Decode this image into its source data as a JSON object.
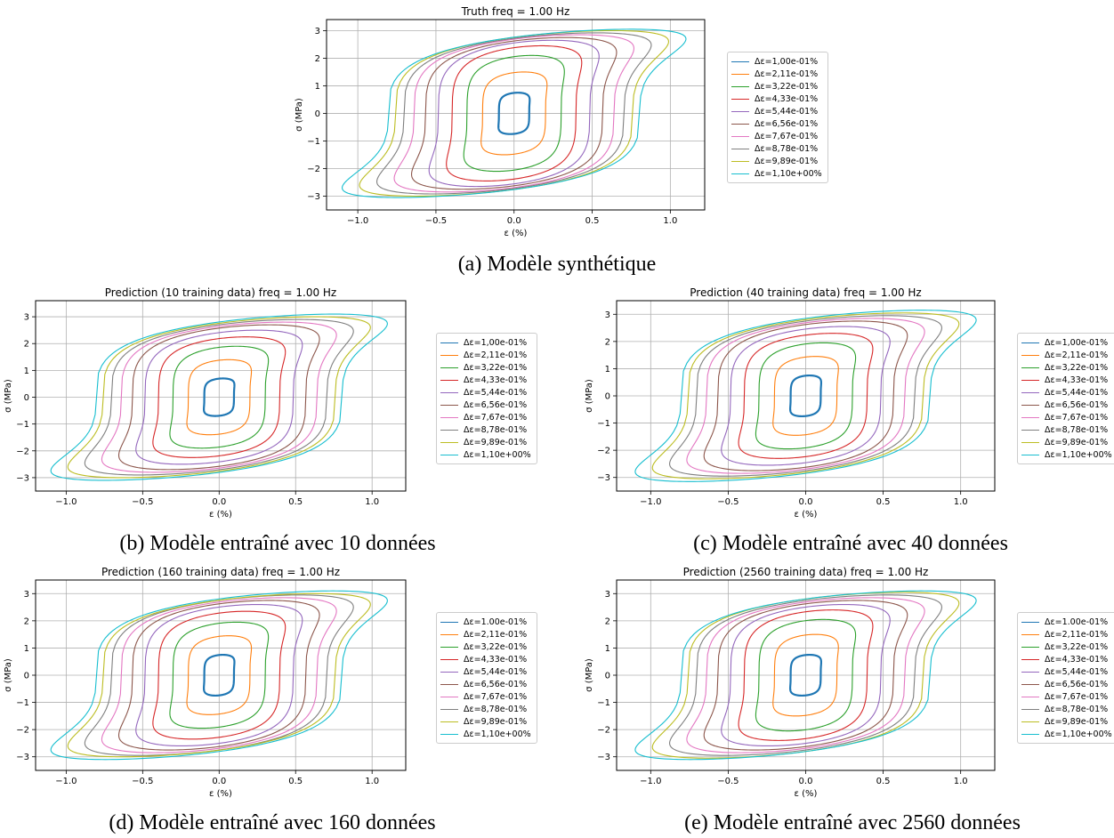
{
  "captions": {
    "a": "(a) Modèle synthétique",
    "b": "(b) Modèle entraîné avec 10 données",
    "c": "(c) Modèle entraîné avec 40 données",
    "d": "(d) Modèle entraîné avec 160 données",
    "e": "(e) Modèle entraîné avec 2560 données"
  },
  "chart_data": [
    {
      "id": "a",
      "type": "line",
      "title": "Truth freq = 1.00 Hz",
      "xlabel": "ε (%)",
      "ylabel": "σ (MPa)",
      "xlim": [
        -1.2,
        1.22
      ],
      "ylim": [
        -3.5,
        3.4
      ],
      "xticks": [
        -1.0,
        -0.5,
        0.0,
        0.5,
        1.0
      ],
      "xtick_labels": [
        "−1.0",
        "−0.5",
        "0.0",
        "0.5",
        "1.0"
      ],
      "yticks": [
        -3,
        -2,
        -1,
        0,
        1,
        2,
        3
      ],
      "ytick_labels": [
        "−3",
        "−2",
        "−1",
        "0",
        "1",
        "2",
        "3"
      ],
      "grid": true,
      "legend_position": "outside-right",
      "series": [
        {
          "name": "Δε=1,00e-01%",
          "amplitude": 0.1,
          "sigma_max": 0.75
        },
        {
          "name": "Δε=2,11e-01%",
          "amplitude": 0.211,
          "sigma_max": 1.5
        },
        {
          "name": "Δε=3,22e-01%",
          "amplitude": 0.322,
          "sigma_max": 2.1
        },
        {
          "name": "Δε=4,33e-01%",
          "amplitude": 0.433,
          "sigma_max": 2.45
        },
        {
          "name": "Δε=5,44e-01%",
          "amplitude": 0.544,
          "sigma_max": 2.65
        },
        {
          "name": "Δε=6,56e-01%",
          "amplitude": 0.656,
          "sigma_max": 2.75
        },
        {
          "name": "Δε=7,67e-01%",
          "amplitude": 0.767,
          "sigma_max": 2.85
        },
        {
          "name": "Δε=8,78e-01%",
          "amplitude": 0.878,
          "sigma_max": 2.92
        },
        {
          "name": "Δε=9,89e-01%",
          "amplitude": 0.989,
          "sigma_max": 3.0
        },
        {
          "name": "Δε=1,10e+00%",
          "amplitude": 1.1,
          "sigma_max": 3.05
        }
      ]
    },
    {
      "id": "b",
      "type": "line",
      "title": "Prediction (10 training data) freq = 1.00 Hz",
      "xlabel": "ε (%)",
      "ylabel": "σ (MPa)",
      "xlim": [
        -1.2,
        1.22
      ],
      "ylim": [
        -3.5,
        3.6
      ],
      "xticks": [
        -1.0,
        -0.5,
        0.0,
        0.5,
        1.0
      ],
      "xtick_labels": [
        "−1.0",
        "−0.5",
        "0.0",
        "0.5",
        "1.0"
      ],
      "yticks": [
        -3,
        -2,
        -1,
        0,
        1,
        2,
        3
      ],
      "ytick_labels": [
        "−3",
        "−2",
        "−1",
        "0",
        "1",
        "2",
        "3"
      ],
      "grid": true,
      "legend_position": "outside-right",
      "series": [
        {
          "name": "Δε=1,00e-01%",
          "amplitude": 0.1,
          "sigma_max": 0.7
        },
        {
          "name": "Δε=2,11e-01%",
          "amplitude": 0.211,
          "sigma_max": 1.4
        },
        {
          "name": "Δε=3,22e-01%",
          "amplitude": 0.322,
          "sigma_max": 1.9
        },
        {
          "name": "Δε=4,33e-01%",
          "amplitude": 0.433,
          "sigma_max": 2.25
        },
        {
          "name": "Δε=5,44e-01%",
          "amplitude": 0.544,
          "sigma_max": 2.5
        },
        {
          "name": "Δε=6,56e-01%",
          "amplitude": 0.656,
          "sigma_max": 2.7
        },
        {
          "name": "Δε=7,67e-01%",
          "amplitude": 0.767,
          "sigma_max": 2.8
        },
        {
          "name": "Δε=8,78e-01%",
          "amplitude": 0.878,
          "sigma_max": 2.9
        },
        {
          "name": "Δε=9,89e-01%",
          "amplitude": 0.989,
          "sigma_max": 3.0
        },
        {
          "name": "Δε=1,10e+00%",
          "amplitude": 1.1,
          "sigma_max": 3.1
        }
      ]
    },
    {
      "id": "c",
      "type": "line",
      "title": "Prediction (40 training data) freq = 1.00 Hz",
      "xlabel": "ε (%)",
      "ylabel": "σ (MPa)",
      "xlim": [
        -1.22,
        1.22
      ],
      "ylim": [
        -3.5,
        3.5
      ],
      "xticks": [
        -1.0,
        -0.5,
        0.0,
        0.5,
        1.0
      ],
      "xtick_labels": [
        "−1.0",
        "−0.5",
        "0.0",
        "0.5",
        "1.0"
      ],
      "yticks": [
        -3,
        -2,
        -1,
        0,
        1,
        2,
        3
      ],
      "ytick_labels": [
        "−3",
        "−2",
        "−1",
        "0",
        "1",
        "2",
        "3"
      ],
      "grid": true,
      "legend_position": "outside-right",
      "series": [
        {
          "name": "Δε=1,00e-01%",
          "amplitude": 0.1,
          "sigma_max": 0.75
        },
        {
          "name": "Δε=2,11e-01%",
          "amplitude": 0.211,
          "sigma_max": 1.45
        },
        {
          "name": "Δε=3,22e-01%",
          "amplitude": 0.322,
          "sigma_max": 1.95
        },
        {
          "name": "Δε=4,33e-01%",
          "amplitude": 0.433,
          "sigma_max": 2.3
        },
        {
          "name": "Δε=5,44e-01%",
          "amplitude": 0.544,
          "sigma_max": 2.55
        },
        {
          "name": "Δε=6,56e-01%",
          "amplitude": 0.656,
          "sigma_max": 2.75
        },
        {
          "name": "Δε=7,67e-01%",
          "amplitude": 0.767,
          "sigma_max": 2.85
        },
        {
          "name": "Δε=8,78e-01%",
          "amplitude": 0.878,
          "sigma_max": 2.95
        },
        {
          "name": "Δε=9,89e-01%",
          "amplitude": 0.989,
          "sigma_max": 3.05
        },
        {
          "name": "Δε=1,10e+00%",
          "amplitude": 1.1,
          "sigma_max": 3.15
        }
      ]
    },
    {
      "id": "d",
      "type": "line",
      "title": "Prediction (160 training data) freq = 1.00 Hz",
      "xlabel": "ε (%)",
      "ylabel": "σ (MPa)",
      "xlim": [
        -1.2,
        1.22
      ],
      "ylim": [
        -3.5,
        3.5
      ],
      "xticks": [
        -1.0,
        -0.5,
        0.0,
        0.5,
        1.0
      ],
      "xtick_labels": [
        "−1.0",
        "−0.5",
        "0.0",
        "0.5",
        "1.0"
      ],
      "yticks": [
        -3,
        -2,
        -1,
        0,
        1,
        2,
        3
      ],
      "ytick_labels": [
        "−3",
        "−2",
        "−1",
        "0",
        "1",
        "2",
        "3"
      ],
      "grid": true,
      "legend_position": "outside-right",
      "series": [
        {
          "name": "Δε=1.00e-01%",
          "amplitude": 0.1,
          "sigma_max": 0.75
        },
        {
          "name": "Δε=2,11e-01%",
          "amplitude": 0.211,
          "sigma_max": 1.45
        },
        {
          "name": "Δε=3,22e-01%",
          "amplitude": 0.322,
          "sigma_max": 1.95
        },
        {
          "name": "Δε=4,33e-01%",
          "amplitude": 0.433,
          "sigma_max": 2.35
        },
        {
          "name": "Δε=5,44e-01%",
          "amplitude": 0.544,
          "sigma_max": 2.6
        },
        {
          "name": "Δε=6,56e-01%",
          "amplitude": 0.656,
          "sigma_max": 2.75
        },
        {
          "name": "Δε=7,67e-01%",
          "amplitude": 0.767,
          "sigma_max": 2.85
        },
        {
          "name": "Δε=8,78e-01%",
          "amplitude": 0.878,
          "sigma_max": 2.95
        },
        {
          "name": "Δε=9,89e-01%",
          "amplitude": 0.989,
          "sigma_max": 3.0
        },
        {
          "name": "Δε=1,10e+00%",
          "amplitude": 1.1,
          "sigma_max": 3.1
        }
      ]
    },
    {
      "id": "e",
      "type": "line",
      "title": "Prediction (2560 training data) freq = 1.00 Hz",
      "xlabel": "ε (%)",
      "ylabel": "σ (MPa)",
      "xlim": [
        -1.22,
        1.22
      ],
      "ylim": [
        -3.5,
        3.5
      ],
      "xticks": [
        -1.0,
        -0.5,
        0.0,
        0.5,
        1.0
      ],
      "xtick_labels": [
        "−1.0",
        "−0.5",
        "0.0",
        "0.5",
        "1.0"
      ],
      "yticks": [
        -3,
        -2,
        -1,
        0,
        1,
        2,
        3
      ],
      "ytick_labels": [
        "−3",
        "−2",
        "−1",
        "0",
        "1",
        "2",
        "3"
      ],
      "grid": true,
      "legend_position": "outside-right",
      "series": [
        {
          "name": "Δε=1.00e-01%",
          "amplitude": 0.1,
          "sigma_max": 0.75
        },
        {
          "name": "Δε=2,11e-01%",
          "amplitude": 0.211,
          "sigma_max": 1.5
        },
        {
          "name": "Δε=3,22e-01%",
          "amplitude": 0.322,
          "sigma_max": 2.05
        },
        {
          "name": "Δε=4,33e-01%",
          "amplitude": 0.433,
          "sigma_max": 2.4
        },
        {
          "name": "Δε=5,44e-01%",
          "amplitude": 0.544,
          "sigma_max": 2.6
        },
        {
          "name": "Δε=6,56e-01%",
          "amplitude": 0.656,
          "sigma_max": 2.75
        },
        {
          "name": "Δε=7,67e-01%",
          "amplitude": 0.767,
          "sigma_max": 2.85
        },
        {
          "name": "Δε=8,78e-01%",
          "amplitude": 0.878,
          "sigma_max": 2.95
        },
        {
          "name": "Δε=9,89e-01%",
          "amplitude": 0.989,
          "sigma_max": 3.05
        },
        {
          "name": "Δε=1,10e+00%",
          "amplitude": 1.1,
          "sigma_max": 3.1
        }
      ]
    }
  ],
  "series_colors": [
    "#1f77b4",
    "#ff7f0e",
    "#2ca02c",
    "#d62728",
    "#9467bd",
    "#8c564b",
    "#e377c2",
    "#7f7f7f",
    "#bcbd22",
    "#17becf"
  ]
}
